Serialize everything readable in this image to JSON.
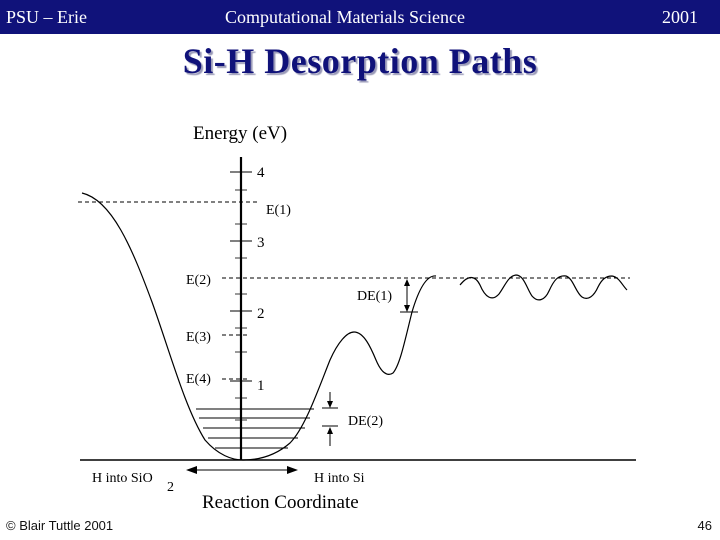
{
  "header": {
    "left": "PSU – Erie",
    "center": "Computational Materials Science",
    "right": "2001",
    "background": "#10127a"
  },
  "title": "Si-H Desorption Paths",
  "title_color": "#10127a",
  "diagram": {
    "axis_title": "Energy (eV)",
    "ticks": [
      "4",
      "3",
      "2",
      "1"
    ],
    "levels": [
      "E(1)",
      "E(2)",
      "E(3)",
      "E(4)"
    ],
    "barriers": [
      "DE(1)",
      "DE(2)"
    ],
    "left_label_main": "H into SiO",
    "left_label_sub": "2",
    "right_label": "H into Si",
    "x_axis_label": "Reaction Coordinate"
  },
  "footer": {
    "copyright": "© Blair Tuttle 2001",
    "page_number": "46"
  }
}
